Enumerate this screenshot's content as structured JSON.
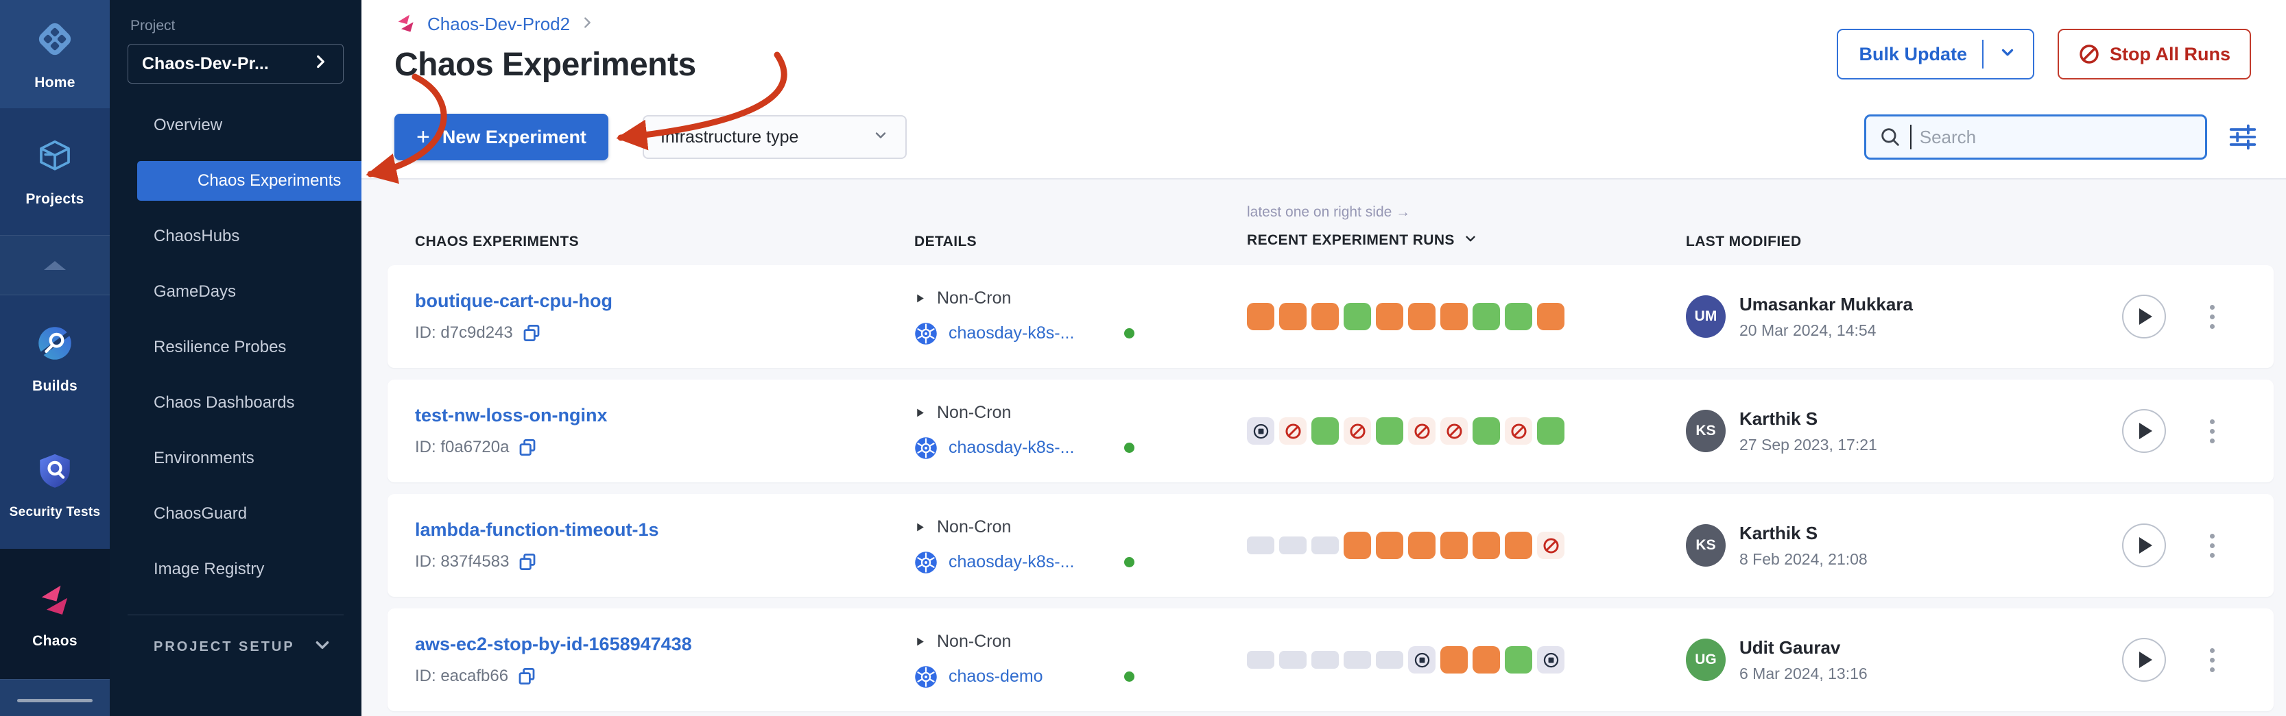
{
  "colors": {
    "primary_blue": "#2f6bce",
    "selected_nav_blue": "#2e6bd0",
    "stop_red": "#b7271d",
    "annotation_arrow_red": "#cf3a1b",
    "run_warning_orange": "#ee8543",
    "run_success_green": "#6ec161",
    "run_failed_red": "#c5291f",
    "run_failed_bg": "#fbeee9",
    "run_stopped_fg": "#242e40",
    "run_stopped_bg": "#e4e4ef",
    "run_empty_gray": "#dfe1eb",
    "infra_status_green": "#3da43d"
  },
  "rail": {
    "modules": [
      {
        "label": "Home",
        "icon": "harness-home"
      },
      {
        "label": "Projects",
        "icon": "cube"
      },
      {
        "label": "Builds",
        "icon": "builds-circle-magnifier"
      },
      {
        "label": "Security Tests",
        "icon": "shield-magnifier"
      },
      {
        "label": "Chaos",
        "icon": "chaos-pink",
        "selected": true
      }
    ]
  },
  "project_nav": {
    "section_label": "Project",
    "project_name": "Chaos-Dev-Pr...",
    "items": [
      {
        "label": "Overview"
      },
      {
        "label": "Chaos Experiments",
        "selected": true
      },
      {
        "label": "ChaosHubs"
      },
      {
        "label": "GameDays"
      },
      {
        "label": "Resilience Probes"
      },
      {
        "label": "Chaos Dashboards"
      },
      {
        "label": "Environments"
      },
      {
        "label": "ChaosGuard"
      },
      {
        "label": "Image Registry"
      }
    ],
    "footer_section": "PROJECT SETUP"
  },
  "header": {
    "breadcrumb": "Chaos-Dev-Prod2",
    "title": "Chaos Experiments",
    "bulk_update_label": "Bulk Update",
    "stop_all_label": "Stop All Runs"
  },
  "toolbar": {
    "new_experiment_plus": "+",
    "new_experiment_label": "New Experiment",
    "infra_filter_label": "Infrastructure type",
    "search_placeholder": "Search"
  },
  "table": {
    "hint": "latest one on right side →",
    "columns": {
      "experiments": "CHAOS EXPERIMENTS",
      "details": "DETAILS",
      "runs": "RECENT EXPERIMENT RUNS",
      "modified": "LAST MODIFIED"
    },
    "run_status_legend": {
      "warning": "completed (orange)",
      "success": "passed (green)",
      "failed": "error (red prohibit icon)",
      "stopped": "stopped (circle-square icon)",
      "none": "empty placeholder"
    },
    "rows": [
      {
        "name": "boutique-cart-cpu-hog",
        "id_label": "ID: d7c9d243",
        "schedule": "Non-Cron",
        "infra": "chaosday-k8s-...",
        "runs": [
          "warning",
          "warning",
          "warning",
          "success",
          "warning",
          "warning",
          "warning",
          "success",
          "success",
          "warning"
        ],
        "initials": "UM",
        "avatar_color": "#414f9c",
        "user": "Umasankar Mukkara",
        "date": "20 Mar 2024, 14:54"
      },
      {
        "name": "test-nw-loss-on-nginx",
        "id_label": "ID: f0a6720a",
        "schedule": "Non-Cron",
        "infra": "chaosday-k8s-...",
        "runs": [
          "stopped",
          "failed",
          "success",
          "failed",
          "success",
          "failed",
          "failed",
          "success",
          "failed",
          "success"
        ],
        "initials": "KS",
        "avatar_color": "#565b68",
        "user": "Karthik S",
        "date": "27 Sep 2023, 17:21"
      },
      {
        "name": "lambda-function-timeout-1s",
        "id_label": "ID: 837f4583",
        "schedule": "Non-Cron",
        "infra": "chaosday-k8s-...",
        "runs": [
          "none",
          "none",
          "none",
          "warning",
          "warning",
          "warning",
          "warning",
          "warning",
          "warning",
          "failed"
        ],
        "initials": "KS",
        "avatar_color": "#565b68",
        "user": "Karthik S",
        "date": "8 Feb 2024, 21:08"
      },
      {
        "name": "aws-ec2-stop-by-id-1658947438",
        "id_label": "ID: eacafb66",
        "schedule": "Non-Cron",
        "infra": "chaos-demo",
        "runs": [
          "none",
          "none",
          "none",
          "none",
          "none",
          "stopped",
          "warning",
          "warning",
          "success",
          "stopped"
        ],
        "initials": "UG",
        "avatar_color": "#55a257",
        "user": "Udit Gaurav",
        "date": "6 Mar 2024, 13:16"
      }
    ]
  }
}
